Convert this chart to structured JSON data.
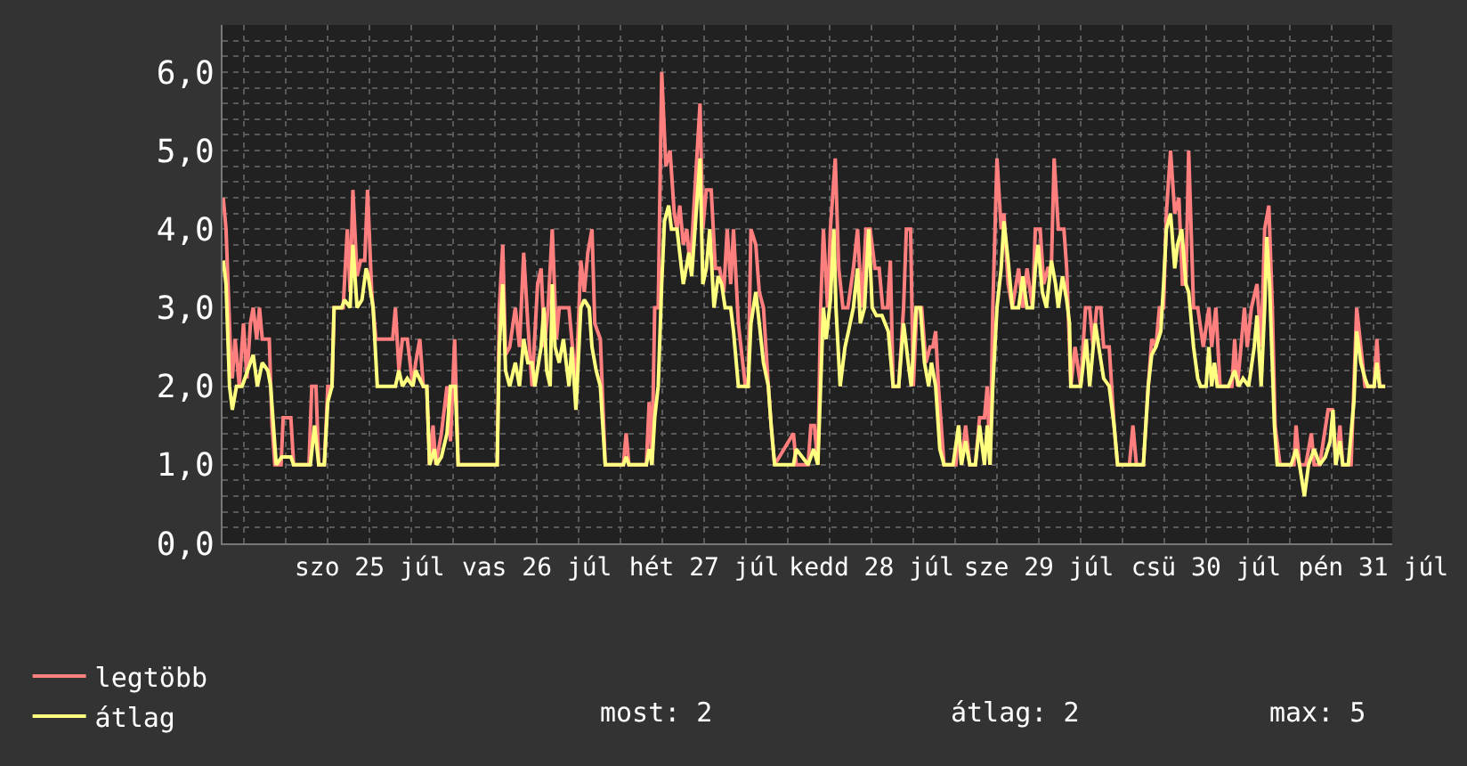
{
  "chart_data": {
    "type": "line",
    "xlim": [
      "--07-24T14:54",
      "--07-31T14:42"
    ],
    "xticks": [
      {
        "value": "--07-24T18:00",
        "label": null
      },
      {
        "value": "--07-25T00:00",
        "label": null
      },
      {
        "value": "--07-25T06:00",
        "label": null
      },
      {
        "value": "--07-25T12:00",
        "label": "szo 25 júl"
      },
      {
        "value": "--07-25T18:00",
        "label": null
      },
      {
        "value": "--07-26T00:00",
        "label": null
      },
      {
        "value": "--07-26T06:00",
        "label": null
      },
      {
        "value": "--07-26T12:00",
        "label": "vas 26 júl"
      },
      {
        "value": "--07-26T18:00",
        "label": null
      },
      {
        "value": "--07-27T00:00",
        "label": null
      },
      {
        "value": "--07-27T06:00",
        "label": null
      },
      {
        "value": "--07-27T12:00",
        "label": "hét 27 júl"
      },
      {
        "value": "--07-27T18:00",
        "label": null
      },
      {
        "value": "--07-28T00:00",
        "label": null
      },
      {
        "value": "--07-28T06:00",
        "label": null
      },
      {
        "value": "--07-28T12:00",
        "label": "kedd 28 júl"
      },
      {
        "value": "--07-28T18:00",
        "label": null
      },
      {
        "value": "--07-29T00:00",
        "label": null
      },
      {
        "value": "--07-29T06:00",
        "label": null
      },
      {
        "value": "--07-29T12:00",
        "label": "sze 29 júl"
      },
      {
        "value": "--07-29T18:00",
        "label": null
      },
      {
        "value": "--07-30T00:00",
        "label": null
      },
      {
        "value": "--07-30T06:00",
        "label": null
      },
      {
        "value": "--07-30T12:00",
        "label": "csü 30 júl"
      },
      {
        "value": "--07-30T18:00",
        "label": null
      },
      {
        "value": "--07-31T00:00",
        "label": null
      },
      {
        "value": "--07-31T06:00",
        "label": null
      },
      {
        "value": "--07-31T12:00",
        "label": "pén 31 júl"
      }
    ],
    "ylim": [
      0,
      6.6
    ],
    "yticks": [
      {
        "value": 0,
        "label": "0,0"
      },
      {
        "value": 0.2,
        "label": null
      },
      {
        "value": 0.4,
        "label": null
      },
      {
        "value": 0.6,
        "label": null
      },
      {
        "value": 0.8,
        "label": null
      },
      {
        "value": 1,
        "label": "1,0"
      },
      {
        "value": 1.2,
        "label": null
      },
      {
        "value": 1.4,
        "label": null
      },
      {
        "value": 1.6,
        "label": null
      },
      {
        "value": 1.8,
        "label": null
      },
      {
        "value": 2,
        "label": "2,0"
      },
      {
        "value": 2.2,
        "label": null
      },
      {
        "value": 2.4,
        "label": null
      },
      {
        "value": 2.6,
        "label": null
      },
      {
        "value": 2.8,
        "label": null
      },
      {
        "value": 3,
        "label": "3,0"
      },
      {
        "value": 3.2,
        "label": null
      },
      {
        "value": 3.4,
        "label": null
      },
      {
        "value": 3.6,
        "label": null
      },
      {
        "value": 3.8,
        "label": null
      },
      {
        "value": 4,
        "label": "4,0"
      },
      {
        "value": 4.2,
        "label": null
      },
      {
        "value": 4.4,
        "label": null
      },
      {
        "value": 4.6,
        "label": null
      },
      {
        "value": 4.8,
        "label": null
      },
      {
        "value": 5,
        "label": "5,0"
      },
      {
        "value": 5.2,
        "label": null
      },
      {
        "value": 5.4,
        "label": null
      },
      {
        "value": 5.6,
        "label": null
      },
      {
        "value": 5.8,
        "label": null
      },
      {
        "value": 6,
        "label": "6,0"
      },
      {
        "value": 6.2,
        "label": null
      },
      {
        "value": 6.4,
        "label": null
      }
    ],
    "grid": true,
    "legend": "bottom left",
    "marker": "none",
    "line_style": "solid",
    "annotations": [
      "most: 2",
      "átlag: 2",
      "max: 5"
    ],
    "series": [
      {
        "name": "legtöbb",
        "color": "#ff7f7f",
        "x": [
          "--07-24T15:00",
          "--07-24T15:24",
          "--07-24T16:06",
          "--07-24T16:18",
          "--07-24T16:42",
          "--07-24T17:18",
          "--07-24T17:54",
          "--07-24T18:24",
          "--07-24T18:54",
          "--07-24T19:18",
          "--07-24T19:48",
          "--07-24T20:12",
          "--07-24T20:36",
          "--07-24T21:36",
          "--07-24T22:00",
          "--07-24T22:24",
          "--07-24T23:18",
          "--07-24T23:36",
          "--07-25T00:42",
          "--07-25T01:06",
          "--07-25T03:18",
          "--07-25T03:42",
          "--07-25T04:18",
          "--07-25T04:42",
          "--07-25T05:30",
          "--07-25T06:00",
          "--07-25T06:36",
          "--07-25T06:54",
          "--07-25T08:12",
          "--07-25T08:48",
          "--07-25T09:12",
          "--07-25T09:36",
          "--07-25T10:12",
          "--07-25T10:42",
          "--07-25T11:18",
          "--07-25T11:42",
          "--07-25T12:18",
          "--07-25T12:54",
          "--07-25T14:30",
          "--07-25T15:18",
          "--07-25T15:42",
          "--07-25T16:12",
          "--07-25T16:42",
          "--07-25T17:24",
          "--07-25T18:12",
          "--07-25T18:36",
          "--07-25T19:12",
          "--07-25T19:42",
          "--07-25T20:12",
          "--07-25T20:36",
          "--07-25T21:06",
          "--07-25T21:30",
          "--07-25T22:18",
          "--07-25T23:06",
          "--07-25T23:36",
          "--07-26T00:12",
          "--07-26T00:42",
          "--07-26T06:18",
          "--07-26T06:36",
          "--07-26T07:06",
          "--07-26T07:30",
          "--07-26T08:06",
          "--07-26T08:54",
          "--07-26T09:30",
          "--07-26T10:06",
          "--07-26T10:42",
          "--07-26T11:18",
          "--07-26T12:06",
          "--07-26T12:36",
          "--07-26T13:06",
          "--07-26T13:36",
          "--07-26T14:12",
          "--07-26T14:48",
          "--07-26T15:12",
          "--07-26T16:36",
          "--07-26T17:00",
          "--07-26T17:36",
          "--07-26T18:18",
          "--07-26T18:48",
          "--07-26T19:18",
          "--07-26T19:54",
          "--07-26T20:18",
          "--07-26T21:06",
          "--07-26T21:48",
          "--07-27T00:24",
          "--07-27T00:48",
          "--07-27T01:12",
          "--07-27T03:42",
          "--07-27T04:06",
          "--07-27T04:30",
          "--07-27T04:54",
          "--07-27T05:24",
          "--07-27T05:54",
          "--07-27T06:30",
          "--07-27T07:06",
          "--07-27T07:42",
          "--07-27T08:06",
          "--07-27T08:30",
          "--07-27T09:00",
          "--07-27T09:30",
          "--07-27T10:00",
          "--07-27T11:24",
          "--07-27T11:48",
          "--07-27T12:18",
          "--07-27T13:00",
          "--07-27T13:36",
          "--07-27T14:12",
          "--07-27T14:48",
          "--07-27T15:18",
          "--07-27T15:48",
          "--07-27T16:12",
          "--07-27T16:54",
          "--07-27T17:54",
          "--07-27T18:18",
          "--07-27T18:42",
          "--07-27T19:24",
          "--07-27T19:54",
          "--07-27T20:30",
          "--07-27T21:12",
          "--07-27T21:36",
          "--07-27T22:06",
          "--07-28T00:48",
          "--07-28T01:12",
          "--07-28T02:54",
          "--07-28T03:18",
          "--07-28T03:48",
          "--07-28T04:18",
          "--07-28T04:42",
          "--07-28T05:06",
          "--07-28T05:42",
          "--07-28T06:06",
          "--07-28T06:48",
          "--07-28T07:18",
          "--07-28T07:54",
          "--07-28T08:36",
          "--07-28T09:24",
          "--07-28T10:00",
          "--07-28T10:36",
          "--07-28T11:12",
          "--07-28T11:48",
          "--07-28T12:30",
          "--07-28T13:06",
          "--07-28T13:36",
          "--07-28T14:18",
          "--07-28T14:42",
          "--07-28T15:06",
          "--07-28T15:54",
          "--07-28T16:36",
          "--07-28T17:00",
          "--07-28T17:36",
          "--07-28T18:00",
          "--07-28T18:30",
          "--07-28T19:12",
          "--07-28T19:48",
          "--07-28T20:24",
          "--07-28T20:48",
          "--07-28T21:12",
          "--07-28T21:36",
          "--07-28T22:00",
          "--07-28T22:24",
          "--07-29T00:06",
          "--07-29T00:30",
          "--07-29T00:54",
          "--07-29T01:30",
          "--07-29T02:06",
          "--07-29T02:54",
          "--07-29T03:30",
          "--07-29T04:12",
          "--07-29T04:36",
          "--07-29T05:00",
          "--07-29T05:24",
          "--07-29T06:00",
          "--07-29T06:36",
          "--07-29T07:00",
          "--07-29T07:36",
          "--07-29T08:12",
          "--07-29T09:06",
          "--07-29T09:42",
          "--07-29T10:18",
          "--07-29T11:06",
          "--07-29T11:30",
          "--07-29T12:12",
          "--07-29T12:42",
          "--07-29T13:18",
          "--07-29T13:48",
          "--07-29T14:12",
          "--07-29T14:48",
          "--07-29T15:36",
          "--07-29T16:00",
          "--07-29T16:36",
          "--07-29T17:12",
          "--07-29T18:00",
          "--07-29T18:42",
          "--07-29T19:18",
          "--07-29T19:48",
          "--07-29T20:18",
          "--07-29T20:54",
          "--07-29T21:18",
          "--07-29T22:06",
          "--07-29T22:48",
          "--07-29T23:18",
          "--07-30T01:00",
          "--07-30T01:30",
          "--07-30T02:00",
          "--07-30T03:00",
          "--07-30T03:42",
          "--07-30T04:12",
          "--07-30T04:48",
          "--07-30T05:18",
          "--07-30T05:54",
          "--07-30T06:18",
          "--07-30T06:54",
          "--07-30T07:30",
          "--07-30T08:06",
          "--07-30T08:36",
          "--07-30T09:06",
          "--07-30T09:30",
          "--07-30T10:12",
          "--07-30T10:48",
          "--07-30T11:36",
          "--07-30T12:24",
          "--07-30T12:48",
          "--07-30T13:24",
          "--07-30T14:00",
          "--07-30T15:42",
          "--07-30T16:06",
          "--07-30T16:30",
          "--07-30T17:30",
          "--07-30T17:54",
          "--07-30T18:30",
          "--07-30T19:18",
          "--07-30T19:54",
          "--07-30T20:24",
          "--07-30T21:00",
          "--07-30T21:30",
          "--07-30T21:54",
          "--07-30T22:36",
          "--07-31T00:36",
          "--07-31T00:54",
          "--07-31T01:24",
          "--07-31T02:18",
          "--07-31T03:06",
          "--07-31T03:30",
          "--07-31T04:18",
          "--07-31T05:30",
          "--07-31T06:06",
          "--07-31T06:36",
          "--07-31T07:12",
          "--07-31T07:36",
          "--07-31T08:48",
          "--07-31T09:12",
          "--07-31T09:36",
          "--07-31T10:12",
          "--07-31T10:48",
          "--07-31T12:06",
          "--07-31T12:30",
          "--07-31T12:54",
          "--07-31T13:42"
        ],
        "values": [
          4.4,
          4.0,
          2.3,
          2.1,
          2.6,
          2.0,
          2.8,
          2.1,
          2.8,
          3.0,
          2.6,
          3.0,
          2.6,
          2.6,
          1.5,
          1.0,
          1.0,
          1.6,
          1.6,
          1.0,
          1.0,
          2.0,
          2.0,
          1.0,
          1.0,
          2.0,
          2.0,
          3.0,
          3.0,
          4.0,
          3.2,
          4.5,
          3.4,
          3.6,
          3.6,
          4.5,
          3.2,
          2.6,
          2.6,
          2.6,
          3.0,
          2.2,
          2.6,
          2.6,
          2.0,
          2.3,
          2.6,
          2.0,
          2.0,
          1.0,
          1.5,
          1.0,
          1.4,
          2.0,
          1.3,
          2.6,
          1.0,
          1.0,
          3.0,
          3.8,
          2.4,
          2.5,
          3.0,
          2.5,
          3.7,
          2.8,
          2.0,
          3.3,
          3.5,
          2.5,
          3.0,
          4.0,
          2.6,
          3.0,
          3.0,
          2.6,
          2.0,
          3.6,
          3.2,
          3.7,
          4.0,
          2.8,
          2.6,
          1.0,
          1.0,
          1.4,
          1.0,
          1.0,
          1.8,
          1.0,
          3.0,
          3.0,
          6.0,
          4.8,
          5.0,
          4.2,
          4.0,
          4.3,
          3.8,
          4.0,
          3.5,
          5.6,
          4.0,
          4.5,
          4.5,
          3.5,
          3.5,
          3.2,
          4.0,
          3.3,
          4.0,
          2.8,
          2.0,
          2.0,
          4.0,
          3.8,
          3.2,
          3.0,
          2.0,
          1.5,
          1.0,
          1.4,
          1.0,
          1.0,
          1.5,
          1.5,
          1.0,
          3.0,
          4.0,
          3.0,
          4.0,
          4.9,
          3.5,
          3.0,
          3.0,
          3.5,
          4.0,
          3.0,
          4.0,
          4.0,
          3.5,
          3.5,
          3.0,
          3.0,
          3.6,
          2.0,
          2.0,
          3.0,
          4.0,
          4.0,
          2.0,
          3.0,
          3.0,
          2.3,
          2.5,
          2.5,
          2.7,
          2.0,
          1.5,
          1.0,
          1.0,
          1.5,
          1.0,
          1.5,
          1.0,
          1.0,
          1.6,
          1.6,
          2.0,
          1.0,
          3.0,
          4.9,
          4.0,
          4.2,
          3.3,
          3.0,
          3.5,
          3.0,
          3.5,
          3.0,
          4.0,
          4.0,
          3.3,
          3.5,
          3.5,
          4.9,
          4.0,
          4.0,
          3.5,
          2.0,
          2.5,
          2.0,
          3.0,
          3.0,
          2.5,
          3.0,
          3.0,
          2.5,
          2.5,
          1.5,
          1.0,
          1.0,
          1.5,
          1.0,
          1.0,
          2.0,
          2.6,
          2.5,
          3.0,
          3.0,
          4.2,
          5.0,
          4.2,
          4.4,
          3.3,
          3.3,
          5.0,
          3.0,
          3.0,
          2.5,
          3.0,
          2.5,
          3.0,
          2.0,
          2.0,
          2.6,
          2.0,
          3.0,
          2.5,
          3.0,
          3.3,
          2.5,
          4.0,
          4.3,
          3.0,
          1.5,
          1.0,
          1.0,
          1.5,
          1.0,
          1.0,
          1.4,
          1.0,
          1.0,
          1.7,
          1.7,
          1.0,
          1.5,
          1.0,
          1.0,
          2.0,
          3.0,
          2.5,
          2.0,
          2.0,
          2.6,
          2.0,
          2.0
        ]
      },
      {
        "name": "átlag",
        "color": "#ffff80",
        "x": [
          "--07-24T15:00",
          "--07-24T15:24",
          "--07-24T15:54",
          "--07-24T16:18",
          "--07-24T16:54",
          "--07-24T17:42",
          "--07-24T18:30",
          "--07-24T19:18",
          "--07-24T19:54",
          "--07-24T20:36",
          "--07-24T21:24",
          "--07-24T21:48",
          "--07-24T22:12",
          "--07-24T22:36",
          "--07-24T23:24",
          "--07-25T00:42",
          "--07-25T01:06",
          "--07-25T03:30",
          "--07-25T04:06",
          "--07-25T04:42",
          "--07-25T05:30",
          "--07-25T06:00",
          "--07-25T06:36",
          "--07-25T06:54",
          "--07-25T08:00",
          "--07-25T08:24",
          "--07-25T09:12",
          "--07-25T09:36",
          "--07-25T10:12",
          "--07-25T10:54",
          "--07-25T11:30",
          "--07-25T11:48",
          "--07-25T12:30",
          "--07-25T13:06",
          "--07-25T14:30",
          "--07-25T15:42",
          "--07-25T16:12",
          "--07-25T16:42",
          "--07-25T17:24",
          "--07-25T18:12",
          "--07-25T18:36",
          "--07-25T19:42",
          "--07-25T20:12",
          "--07-25T20:36",
          "--07-25T21:18",
          "--07-25T21:36",
          "--07-25T22:18",
          "--07-25T23:06",
          "--07-25T23:36",
          "--07-26T00:18",
          "--07-26T00:42",
          "--07-26T03:12",
          "--07-26T06:18",
          "--07-26T06:36",
          "--07-26T07:06",
          "--07-26T07:30",
          "--07-26T08:06",
          "--07-26T08:54",
          "--07-26T09:30",
          "--07-26T10:06",
          "--07-26T10:42",
          "--07-26T11:18",
          "--07-26T11:42",
          "--07-26T12:36",
          "--07-26T13:00",
          "--07-26T13:24",
          "--07-26T13:54",
          "--07-26T14:12",
          "--07-26T14:36",
          "--07-26T15:12",
          "--07-26T15:48",
          "--07-26T16:36",
          "--07-26T17:00",
          "--07-26T17:36",
          "--07-26T18:18",
          "--07-26T18:48",
          "--07-26T19:30",
          "--07-26T19:54",
          "--07-26T20:30",
          "--07-26T21:06",
          "--07-26T21:48",
          "--07-27T00:24",
          "--07-27T00:48",
          "--07-27T01:12",
          "--07-27T03:42",
          "--07-27T04:06",
          "--07-27T04:30",
          "--07-27T04:54",
          "--07-27T05:24",
          "--07-27T05:54",
          "--07-27T06:18",
          "--07-27T06:54",
          "--07-27T07:18",
          "--07-27T08:06",
          "--07-27T09:00",
          "--07-27T09:48",
          "--07-27T10:12",
          "--07-27T11:24",
          "--07-27T11:48",
          "--07-27T12:18",
          "--07-27T12:48",
          "--07-27T13:24",
          "--07-27T14:00",
          "--07-27T14:30",
          "--07-27T15:00",
          "--07-27T15:48",
          "--07-27T16:12",
          "--07-27T16:54",
          "--07-27T18:18",
          "--07-27T18:42",
          "--07-27T19:24",
          "--07-27T19:54",
          "--07-27T20:30",
          "--07-27T21:12",
          "--07-27T21:36",
          "--07-27T22:06",
          "--07-28T00:48",
          "--07-28T01:12",
          "--07-28T02:54",
          "--07-28T03:42",
          "--07-28T04:18",
          "--07-28T04:42",
          "--07-28T05:06",
          "--07-28T05:30",
          "--07-28T06:06",
          "--07-28T06:36",
          "--07-28T06:54",
          "--07-28T07:30",
          "--07-28T08:12",
          "--07-28T08:42",
          "--07-28T09:24",
          "--07-28T10:00",
          "--07-28T10:24",
          "--07-28T11:00",
          "--07-28T11:36",
          "--07-28T12:06",
          "--07-28T12:42",
          "--07-28T13:30",
          "--07-28T14:24",
          "--07-28T15:06",
          "--07-28T15:54",
          "--07-28T16:36",
          "--07-28T17:00",
          "--07-28T17:24",
          "--07-28T17:42",
          "--07-28T18:24",
          "--07-28T19:00",
          "--07-28T19:36",
          "--07-28T20:12",
          "--07-28T20:36",
          "--07-28T21:12",
          "--07-28T21:48",
          "--07-28T22:24",
          "--07-28T23:42",
          "--07-29T00:30",
          "--07-29T00:54",
          "--07-29T01:30",
          "--07-29T02:06",
          "--07-29T02:54",
          "--07-29T03:30",
          "--07-29T04:12",
          "--07-29T04:36",
          "--07-29T05:00",
          "--07-29T05:24",
          "--07-29T06:00",
          "--07-29T06:36",
          "--07-29T07:00",
          "--07-29T07:36",
          "--07-29T08:12",
          "--07-29T09:06",
          "--07-29T09:42",
          "--07-29T10:18",
          "--07-29T11:06",
          "--07-29T11:30",
          "--07-29T11:54",
          "--07-29T12:30",
          "--07-29T13:06",
          "--07-29T13:48",
          "--07-29T14:24",
          "--07-29T14:48",
          "--07-29T15:24",
          "--07-29T16:00",
          "--07-29T16:24",
          "--07-29T16:36",
          "--07-29T18:00",
          "--07-29T18:48",
          "--07-29T19:18",
          "--07-29T20:06",
          "--07-29T20:36",
          "--07-29T21:18",
          "--07-29T22:06",
          "--07-29T22:48",
          "--07-29T23:18",
          "--07-30T03:00",
          "--07-30T03:42",
          "--07-30T04:12",
          "--07-30T04:48",
          "--07-30T05:30",
          "--07-30T05:54",
          "--07-30T06:18",
          "--07-30T06:54",
          "--07-30T07:30",
          "--07-30T07:54",
          "--07-30T08:30",
          "--07-30T09:06",
          "--07-30T09:30",
          "--07-30T10:12",
          "--07-30T10:48",
          "--07-30T11:12",
          "--07-30T12:00",
          "--07-30T12:24",
          "--07-30T12:48",
          "--07-30T13:12",
          "--07-30T13:36",
          "--07-30T15:12",
          "--07-30T16:06",
          "--07-30T16:42",
          "--07-30T17:18",
          "--07-30T18:06",
          "--07-30T18:54",
          "--07-30T19:18",
          "--07-30T19:54",
          "--07-30T20:24",
          "--07-30T20:42",
          "--07-30T21:06",
          "--07-30T21:48",
          "--07-30T22:12",
          "--07-31T00:12",
          "--07-31T00:54",
          "--07-31T01:24",
          "--07-31T02:06",
          "--07-31T02:42",
          "--07-31T03:30",
          "--07-31T04:18",
          "--07-31T05:06",
          "--07-31T05:48",
          "--07-31T06:12",
          "--07-31T06:36",
          "--07-31T07:12",
          "--07-31T07:36",
          "--07-31T08:24",
          "--07-31T09:12",
          "--07-31T09:36",
          "--07-31T10:12",
          "--07-31T10:48",
          "--07-31T11:12",
          "--07-31T12:06",
          "--07-31T12:30",
          "--07-31T12:54",
          "--07-31T13:42"
        ],
        "values": [
          3.6,
          3.3,
          2.0,
          1.7,
          2.0,
          2.0,
          2.2,
          2.4,
          2.0,
          2.3,
          2.2,
          2.0,
          1.5,
          1.0,
          1.1,
          1.1,
          1.0,
          1.0,
          1.5,
          1.0,
          1.0,
          1.8,
          2.0,
          3.0,
          3.0,
          3.1,
          3.0,
          3.8,
          3.0,
          3.1,
          3.5,
          3.4,
          3.0,
          2.0,
          2.0,
          2.0,
          2.2,
          2.0,
          2.1,
          2.0,
          2.2,
          2.0,
          2.0,
          1.0,
          1.2,
          1.0,
          1.1,
          1.4,
          2.0,
          2.0,
          1.0,
          1.0,
          1.0,
          2.5,
          3.3,
          2.2,
          2.0,
          2.3,
          2.0,
          2.6,
          2.3,
          2.3,
          2.0,
          2.5,
          3.0,
          2.2,
          2.0,
          3.3,
          2.5,
          2.3,
          2.6,
          2.0,
          2.5,
          1.7,
          3.0,
          3.1,
          3.0,
          2.5,
          2.2,
          2.0,
          1.0,
          1.0,
          1.1,
          1.0,
          1.0,
          1.2,
          1.0,
          1.6,
          2.0,
          3.3,
          4.1,
          4.3,
          4.0,
          4.0,
          3.3,
          3.7,
          3.4,
          4.9,
          3.3,
          3.5,
          4.0,
          3.0,
          3.4,
          3.3,
          3.0,
          3.0,
          2.7,
          2.0,
          2.0,
          2.8,
          3.2,
          2.8,
          2.3,
          2.0,
          1.5,
          1.0,
          1.0,
          1.2,
          1.0,
          1.2,
          1.0,
          2.0,
          3.0,
          2.6,
          3.1,
          4.0,
          3.0,
          2.0,
          2.5,
          2.7,
          3.0,
          3.5,
          2.8,
          3.0,
          4.0,
          3.0,
          2.9,
          2.9,
          2.7,
          2.0,
          2.0,
          2.8,
          2.5,
          2.2,
          2.0,
          3.0,
          3.0,
          2.3,
          2.0,
          2.3,
          2.0,
          1.2,
          1.0,
          1.0,
          1.5,
          1.0,
          1.3,
          1.0,
          1.0,
          1.5,
          1.0,
          1.5,
          1.0,
          2.0,
          3.0,
          3.5,
          4.1,
          3.6,
          3.0,
          3.0,
          3.4,
          3.0,
          3.0,
          3.5,
          3.8,
          3.2,
          3.0,
          3.6,
          3.3,
          3.0,
          3.4,
          3.1,
          2.8,
          2.0,
          2.0,
          2.6,
          2.0,
          2.8,
          2.5,
          2.1,
          2.0,
          1.5,
          1.0,
          1.0,
          2.0,
          2.4,
          2.5,
          2.7,
          3.3,
          4.0,
          4.2,
          3.5,
          3.8,
          4.0,
          3.3,
          3.2,
          2.5,
          2.1,
          2.0,
          2.0,
          2.5,
          2.0,
          2.3,
          2.0,
          2.0,
          2.2,
          2.0,
          2.1,
          2.0,
          2.5,
          2.9,
          2.0,
          3.0,
          3.9,
          3.3,
          1.5,
          1.0,
          1.0,
          1.2,
          1.0,
          0.6,
          1.0,
          1.2,
          1.0,
          1.1,
          1.3,
          1.7,
          1.0,
          1.3,
          1.0,
          1.0,
          1.8,
          2.7,
          2.3,
          2.1,
          2.0,
          2.0,
          2.3,
          2.0,
          2.0
        ]
      }
    ]
  }
}
